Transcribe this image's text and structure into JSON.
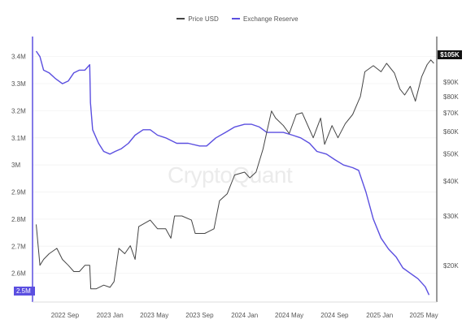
{
  "legend": [
    {
      "name": "Price USD",
      "color": "#444444"
    },
    {
      "name": "Exchange Reserve",
      "color": "#5b4fe0"
    }
  ],
  "watermark": "CryptoQuant",
  "tags": {
    "price": "$105K",
    "reserve": "2.5M"
  },
  "chart_data": {
    "type": "line",
    "x_ticks": [
      "2022 Sep",
      "2023 Jan",
      "2023 May",
      "2023 Sep",
      "2024 Jan",
      "2024 May",
      "2024 Sep",
      "2025 Jan",
      "2025 May"
    ],
    "y_left_ticks": [
      "3.4M",
      "3.3M",
      "3.2M",
      "3.1M",
      "3M",
      "2.9M",
      "2.8M",
      "2.7M",
      "2.6M"
    ],
    "y_right_ticks": [
      "$90K",
      "$80K",
      "$70K",
      "$60K",
      "$50K",
      "$40K",
      "$30K",
      "$20K"
    ],
    "y_left_range": [
      2.5,
      3.45
    ],
    "y_right_range": [
      15,
      120
    ],
    "y_right_scale": "log",
    "series": [
      {
        "name": "Exchange Reserve",
        "unit": "M",
        "color": "#5b4fe0",
        "axis": "left",
        "points": [
          [
            "2022-06-15",
            3.42
          ],
          [
            "2022-06-25",
            3.4
          ],
          [
            "2022-07-05",
            3.35
          ],
          [
            "2022-07-20",
            3.34
          ],
          [
            "2022-08-05",
            3.32
          ],
          [
            "2022-08-25",
            3.3
          ],
          [
            "2022-09-10",
            3.31
          ],
          [
            "2022-09-25",
            3.34
          ],
          [
            "2022-10-10",
            3.35
          ],
          [
            "2022-10-25",
            3.35
          ],
          [
            "2022-11-07",
            3.37
          ],
          [
            "2022-11-09",
            3.23
          ],
          [
            "2022-11-15",
            3.13
          ],
          [
            "2022-12-01",
            3.08
          ],
          [
            "2022-12-15",
            3.05
          ],
          [
            "2023-01-01",
            3.04
          ],
          [
            "2023-01-15",
            3.05
          ],
          [
            "2023-02-01",
            3.06
          ],
          [
            "2023-02-20",
            3.08
          ],
          [
            "2023-03-10",
            3.11
          ],
          [
            "2023-04-01",
            3.13
          ],
          [
            "2023-04-20",
            3.13
          ],
          [
            "2023-05-10",
            3.11
          ],
          [
            "2023-06-01",
            3.1
          ],
          [
            "2023-07-01",
            3.08
          ],
          [
            "2023-08-01",
            3.08
          ],
          [
            "2023-09-01",
            3.07
          ],
          [
            "2023-09-20",
            3.07
          ],
          [
            "2023-10-15",
            3.1
          ],
          [
            "2023-11-10",
            3.12
          ],
          [
            "2023-12-05",
            3.14
          ],
          [
            "2024-01-01",
            3.15
          ],
          [
            "2024-01-20",
            3.15
          ],
          [
            "2024-02-10",
            3.14
          ],
          [
            "2024-03-01",
            3.12
          ],
          [
            "2024-03-20",
            3.12
          ],
          [
            "2024-04-15",
            3.12
          ],
          [
            "2024-05-10",
            3.11
          ],
          [
            "2024-06-01",
            3.1
          ],
          [
            "2024-06-25",
            3.08
          ],
          [
            "2024-07-15",
            3.05
          ],
          [
            "2024-08-10",
            3.04
          ],
          [
            "2024-09-01",
            3.02
          ],
          [
            "2024-09-25",
            3.0
          ],
          [
            "2024-10-20",
            2.99
          ],
          [
            "2024-11-05",
            2.98
          ],
          [
            "2024-11-25",
            2.9
          ],
          [
            "2024-12-15",
            2.8
          ],
          [
            "2025-01-05",
            2.73
          ],
          [
            "2025-01-25",
            2.69
          ],
          [
            "2025-02-15",
            2.66
          ],
          [
            "2025-03-05",
            2.62
          ],
          [
            "2025-03-25",
            2.6
          ],
          [
            "2025-04-15",
            2.58
          ],
          [
            "2025-05-05",
            2.55
          ],
          [
            "2025-05-15",
            2.52
          ]
        ]
      },
      {
        "name": "Price USD",
        "unit": "$K",
        "color": "#444444",
        "axis": "right",
        "points": [
          [
            "2022-06-15",
            28
          ],
          [
            "2022-06-25",
            20
          ],
          [
            "2022-07-05",
            21
          ],
          [
            "2022-07-20",
            22
          ],
          [
            "2022-08-10",
            23
          ],
          [
            "2022-08-25",
            21
          ],
          [
            "2022-09-10",
            20
          ],
          [
            "2022-09-25",
            19
          ],
          [
            "2022-10-10",
            19
          ],
          [
            "2022-10-25",
            20
          ],
          [
            "2022-11-07",
            20
          ],
          [
            "2022-11-10",
            16.5
          ],
          [
            "2022-11-25",
            16.5
          ],
          [
            "2022-12-15",
            17
          ],
          [
            "2023-01-01",
            16.7
          ],
          [
            "2023-01-12",
            17.5
          ],
          [
            "2023-01-25",
            23
          ],
          [
            "2023-02-10",
            22
          ],
          [
            "2023-02-25",
            23.5
          ],
          [
            "2023-03-10",
            21
          ],
          [
            "2023-03-20",
            27.5
          ],
          [
            "2023-04-10",
            28.5
          ],
          [
            "2023-04-20",
            29
          ],
          [
            "2023-05-10",
            27
          ],
          [
            "2023-06-01",
            27
          ],
          [
            "2023-06-15",
            25
          ],
          [
            "2023-06-25",
            30
          ],
          [
            "2023-07-15",
            30
          ],
          [
            "2023-08-10",
            29
          ],
          [
            "2023-08-20",
            26
          ],
          [
            "2023-09-15",
            26
          ],
          [
            "2023-10-10",
            27
          ],
          [
            "2023-10-25",
            34
          ],
          [
            "2023-11-15",
            36
          ],
          [
            "2023-12-05",
            42
          ],
          [
            "2024-01-01",
            43
          ],
          [
            "2024-01-15",
            41
          ],
          [
            "2024-02-01",
            43
          ],
          [
            "2024-02-20",
            52
          ],
          [
            "2024-03-14",
            71
          ],
          [
            "2024-03-25",
            67
          ],
          [
            "2024-04-15",
            63
          ],
          [
            "2024-05-01",
            59
          ],
          [
            "2024-05-20",
            69
          ],
          [
            "2024-06-05",
            70
          ],
          [
            "2024-06-25",
            61
          ],
          [
            "2024-07-05",
            57
          ],
          [
            "2024-07-25",
            67
          ],
          [
            "2024-08-05",
            54
          ],
          [
            "2024-08-25",
            63
          ],
          [
            "2024-09-10",
            57
          ],
          [
            "2024-09-30",
            64
          ],
          [
            "2024-10-20",
            69
          ],
          [
            "2024-11-10",
            80
          ],
          [
            "2024-11-22",
            98
          ],
          [
            "2024-12-15",
            103
          ],
          [
            "2025-01-05",
            98
          ],
          [
            "2025-01-20",
            105
          ],
          [
            "2025-02-10",
            97
          ],
          [
            "2025-02-25",
            85
          ],
          [
            "2025-03-10",
            81
          ],
          [
            "2025-03-25",
            87
          ],
          [
            "2025-04-08",
            77
          ],
          [
            "2025-04-25",
            94
          ],
          [
            "2025-05-10",
            104
          ],
          [
            "2025-05-20",
            108
          ],
          [
            "2025-05-28",
            105
          ]
        ]
      }
    ]
  }
}
